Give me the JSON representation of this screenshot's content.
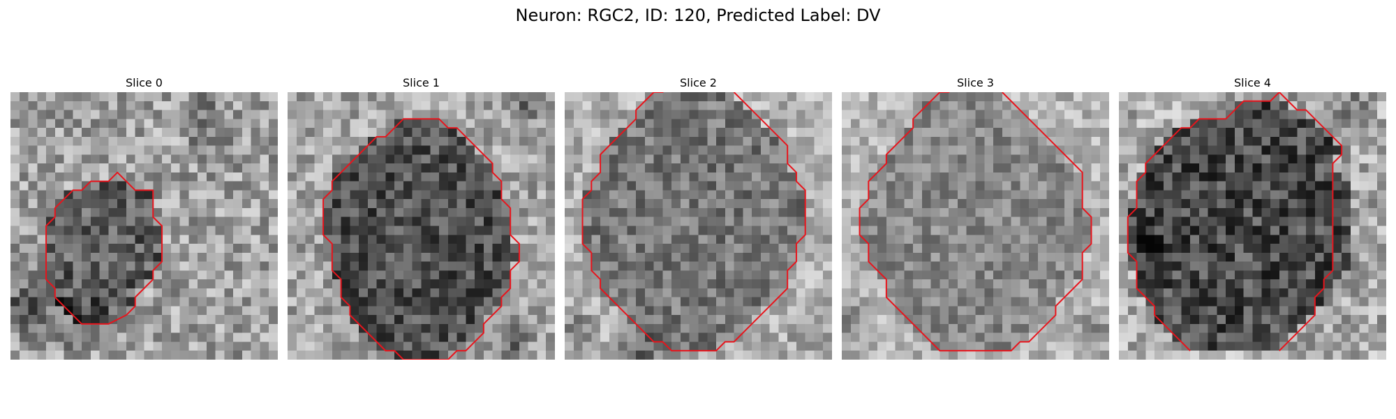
{
  "figure": {
    "title": "Neuron: RGC2, ID: 120, Predicted Label: DV"
  },
  "colors": {
    "contour": "#e8141c",
    "background": "#ffffff"
  },
  "panels": [
    {
      "title": "Slice 0",
      "contour": [
        [
          13,
          10
        ],
        [
          14,
          11
        ],
        [
          16,
          11
        ],
        [
          16,
          14
        ],
        [
          17,
          15
        ],
        [
          17,
          19
        ],
        [
          16,
          20
        ],
        [
          16,
          21
        ],
        [
          15,
          22
        ],
        [
          14,
          23
        ],
        [
          14,
          24
        ],
        [
          13,
          25
        ],
        [
          11,
          26
        ],
        [
          8,
          26
        ],
        [
          7,
          25
        ],
        [
          6,
          24
        ],
        [
          5,
          23
        ],
        [
          5,
          22
        ],
        [
          4,
          21
        ],
        [
          4,
          15
        ],
        [
          5,
          14
        ],
        [
          5,
          13
        ],
        [
          6,
          12
        ],
        [
          7,
          11
        ],
        [
          8,
          11
        ],
        [
          9,
          10
        ],
        [
          11,
          10
        ],
        [
          12,
          9
        ],
        [
          13,
          10
        ]
      ],
      "closed": true
    },
    {
      "title": "Slice 1",
      "contour": [
        [
          16,
          3
        ],
        [
          17,
          3
        ],
        [
          18,
          4
        ],
        [
          19,
          4
        ],
        [
          20,
          5
        ],
        [
          21,
          6
        ],
        [
          22,
          7
        ],
        [
          23,
          8
        ],
        [
          23,
          9
        ],
        [
          24,
          10
        ],
        [
          24,
          12
        ],
        [
          25,
          13
        ],
        [
          25,
          16
        ],
        [
          26,
          17
        ],
        [
          26,
          19
        ],
        [
          25,
          20
        ],
        [
          25,
          22
        ],
        [
          24,
          23
        ],
        [
          24,
          24
        ],
        [
          23,
          25
        ],
        [
          22,
          26
        ],
        [
          22,
          27
        ],
        [
          21,
          28
        ],
        [
          20,
          29
        ],
        [
          19,
          29
        ],
        [
          18,
          30
        ],
        [
          13,
          30
        ],
        [
          12,
          29
        ],
        [
          11,
          29
        ],
        [
          10,
          28
        ],
        [
          9,
          27
        ],
        [
          8,
          26
        ],
        [
          7,
          25
        ],
        [
          7,
          24
        ],
        [
          6,
          23
        ],
        [
          6,
          21
        ],
        [
          5,
          20
        ],
        [
          5,
          17
        ],
        [
          4,
          16
        ],
        [
          4,
          12
        ],
        [
          5,
          11
        ],
        [
          5,
          10
        ],
        [
          6,
          9
        ],
        [
          7,
          8
        ],
        [
          8,
          7
        ],
        [
          9,
          6
        ],
        [
          10,
          5
        ],
        [
          11,
          5
        ],
        [
          12,
          4
        ],
        [
          13,
          3
        ],
        [
          16,
          3
        ]
      ],
      "closed": true
    },
    {
      "title": "Slice 2",
      "contour": [
        [
          19,
          0
        ],
        [
          20,
          1
        ],
        [
          21,
          2
        ],
        [
          22,
          3
        ],
        [
          23,
          4
        ],
        [
          24,
          5
        ],
        [
          25,
          6
        ],
        [
          25,
          8
        ],
        [
          26,
          9
        ],
        [
          26,
          10
        ],
        [
          27,
          11
        ],
        [
          27,
          16
        ],
        [
          26,
          17
        ],
        [
          26,
          19
        ],
        [
          25,
          20
        ],
        [
          25,
          22
        ],
        [
          24,
          23
        ],
        [
          23,
          24
        ],
        [
          22,
          25
        ],
        [
          21,
          26
        ],
        [
          20,
          27
        ],
        [
          19,
          28
        ],
        [
          18,
          28
        ],
        [
          17,
          29
        ],
        [
          12,
          29
        ],
        [
          11,
          28
        ],
        [
          10,
          28
        ],
        [
          9,
          27
        ],
        [
          8,
          26
        ],
        [
          7,
          25
        ],
        [
          6,
          24
        ],
        [
          5,
          23
        ],
        [
          4,
          22
        ],
        [
          4,
          21
        ],
        [
          3,
          20
        ],
        [
          3,
          18
        ],
        [
          2,
          17
        ],
        [
          2,
          12
        ],
        [
          3,
          11
        ],
        [
          3,
          10
        ],
        [
          4,
          9
        ],
        [
          4,
          7
        ],
        [
          5,
          6
        ],
        [
          6,
          5
        ],
        [
          7,
          4
        ],
        [
          8,
          3
        ],
        [
          8,
          2
        ],
        [
          9,
          1
        ],
        [
          10,
          0
        ],
        [
          11,
          0
        ],
        [
          12,
          -1
        ]
      ],
      "closed": false
    },
    {
      "title": "Slice 3",
      "contour": [
        [
          18,
          0
        ],
        [
          19,
          1
        ],
        [
          20,
          2
        ],
        [
          21,
          3
        ],
        [
          22,
          4
        ],
        [
          23,
          5
        ],
        [
          24,
          6
        ],
        [
          25,
          7
        ],
        [
          26,
          8
        ],
        [
          27,
          9
        ],
        [
          27,
          13
        ],
        [
          28,
          14
        ],
        [
          28,
          17
        ],
        [
          27,
          18
        ],
        [
          27,
          21
        ],
        [
          26,
          22
        ],
        [
          25,
          23
        ],
        [
          24,
          24
        ],
        [
          24,
          25
        ],
        [
          23,
          26
        ],
        [
          22,
          27
        ],
        [
          21,
          28
        ],
        [
          20,
          28
        ],
        [
          19,
          29
        ],
        [
          11,
          29
        ],
        [
          10,
          28
        ],
        [
          9,
          27
        ],
        [
          8,
          26
        ],
        [
          7,
          25
        ],
        [
          6,
          24
        ],
        [
          5,
          23
        ],
        [
          5,
          21
        ],
        [
          4,
          20
        ],
        [
          3,
          19
        ],
        [
          3,
          17
        ],
        [
          2,
          16
        ],
        [
          2,
          13
        ],
        [
          3,
          12
        ],
        [
          3,
          10
        ],
        [
          4,
          9
        ],
        [
          5,
          8
        ],
        [
          5,
          7
        ],
        [
          6,
          6
        ],
        [
          7,
          5
        ],
        [
          8,
          4
        ],
        [
          8,
          3
        ],
        [
          9,
          2
        ],
        [
          10,
          1
        ],
        [
          11,
          0
        ],
        [
          12,
          0
        ],
        [
          13,
          -1
        ]
      ],
      "closed": false
    },
    {
      "title": "Slice 4",
      "contour": [
        [
          18,
          29
        ],
        [
          19,
          28
        ],
        [
          20,
          27
        ],
        [
          21,
          26
        ],
        [
          22,
          25
        ],
        [
          22,
          23
        ],
        [
          23,
          22
        ],
        [
          23,
          21
        ],
        [
          24,
          20
        ],
        [
          24,
          8
        ],
        [
          25,
          7
        ],
        [
          25,
          6
        ],
        [
          24,
          5
        ],
        [
          23,
          4
        ],
        [
          22,
          3
        ],
        [
          21,
          2
        ],
        [
          20,
          2
        ],
        [
          19,
          1
        ],
        [
          18,
          0
        ],
        [
          17,
          1
        ],
        [
          14,
          1
        ],
        [
          13,
          2
        ],
        [
          12,
          3
        ],
        [
          9,
          3
        ],
        [
          8,
          4
        ],
        [
          7,
          4
        ],
        [
          6,
          5
        ],
        [
          5,
          6
        ],
        [
          4,
          7
        ],
        [
          3,
          8
        ],
        [
          3,
          9
        ],
        [
          2,
          10
        ],
        [
          2,
          13
        ],
        [
          1,
          14
        ],
        [
          1,
          18
        ],
        [
          2,
          19
        ],
        [
          2,
          22
        ],
        [
          3,
          23
        ],
        [
          4,
          24
        ],
        [
          4,
          25
        ],
        [
          5,
          26
        ],
        [
          6,
          27
        ],
        [
          7,
          28
        ],
        [
          8,
          29
        ]
      ],
      "closed": false
    }
  ]
}
